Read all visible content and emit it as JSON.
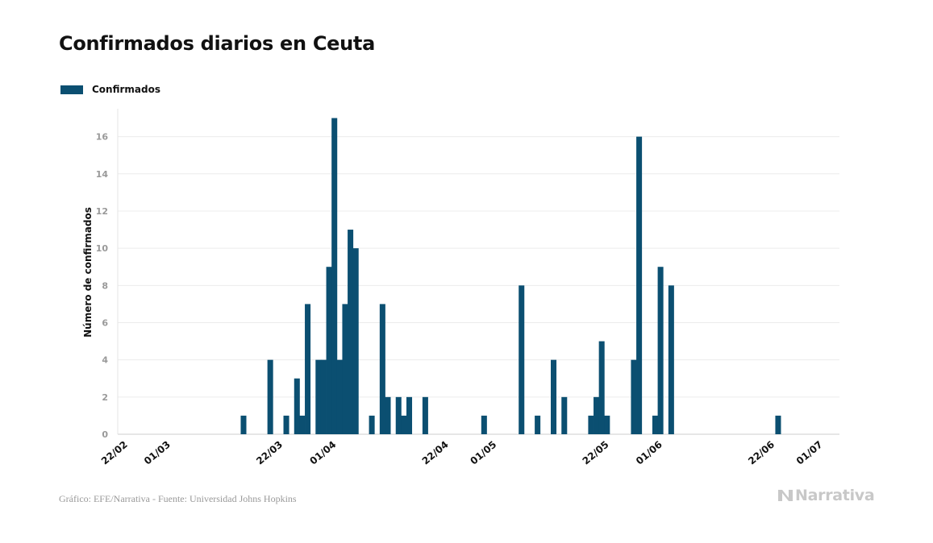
{
  "title": "Confirmados diarios en Ceuta",
  "legend": {
    "label": "Confirmados",
    "color": "#0b4f71"
  },
  "source": "Gráfico: EFE/Narrativa - Fuente: Universidad Johns Hopkins",
  "brand": {
    "name": "Narrativa",
    "logo_icon": "narrativa-logo-icon"
  },
  "chart_data": {
    "type": "bar",
    "title": "Confirmados diarios en Ceuta",
    "ylabel": "Número de confirmados",
    "xlabel": "",
    "ylim": [
      0,
      17.5
    ],
    "yticks": [
      0,
      2,
      4,
      6,
      8,
      10,
      12,
      14,
      16
    ],
    "grid": true,
    "legend_position": "top-left",
    "x_range": [
      "2020-02-21",
      "2020-07-05"
    ],
    "xtick_labels": [
      {
        "date": "2020-02-22",
        "label": "22/02"
      },
      {
        "date": "2020-03-01",
        "label": "01/03"
      },
      {
        "date": "2020-03-22",
        "label": "22/03"
      },
      {
        "date": "2020-04-01",
        "label": "01/04"
      },
      {
        "date": "2020-04-22",
        "label": "22/04"
      },
      {
        "date": "2020-05-01",
        "label": "01/05"
      },
      {
        "date": "2020-05-22",
        "label": "22/05"
      },
      {
        "date": "2020-06-01",
        "label": "01/06"
      },
      {
        "date": "2020-06-22",
        "label": "22/06"
      },
      {
        "date": "2020-07-01",
        "label": "01/07"
      }
    ],
    "series": [
      {
        "name": "Confirmados",
        "color": "#0b4f71",
        "points": [
          {
            "date": "2020-03-15",
            "value": 1
          },
          {
            "date": "2020-03-20",
            "value": 4
          },
          {
            "date": "2020-03-23",
            "value": 1
          },
          {
            "date": "2020-03-25",
            "value": 3
          },
          {
            "date": "2020-03-26",
            "value": 1
          },
          {
            "date": "2020-03-27",
            "value": 7
          },
          {
            "date": "2020-03-29",
            "value": 4
          },
          {
            "date": "2020-03-30",
            "value": 4
          },
          {
            "date": "2020-03-31",
            "value": 9
          },
          {
            "date": "2020-04-01",
            "value": 17
          },
          {
            "date": "2020-04-02",
            "value": 4
          },
          {
            "date": "2020-04-03",
            "value": 7
          },
          {
            "date": "2020-04-04",
            "value": 11
          },
          {
            "date": "2020-04-05",
            "value": 10
          },
          {
            "date": "2020-04-08",
            "value": 1
          },
          {
            "date": "2020-04-10",
            "value": 7
          },
          {
            "date": "2020-04-11",
            "value": 2
          },
          {
            "date": "2020-04-13",
            "value": 2
          },
          {
            "date": "2020-04-14",
            "value": 1
          },
          {
            "date": "2020-04-15",
            "value": 2
          },
          {
            "date": "2020-04-18",
            "value": 2
          },
          {
            "date": "2020-04-29",
            "value": 1
          },
          {
            "date": "2020-05-06",
            "value": 8
          },
          {
            "date": "2020-05-09",
            "value": 1
          },
          {
            "date": "2020-05-12",
            "value": 4
          },
          {
            "date": "2020-05-14",
            "value": 2
          },
          {
            "date": "2020-05-19",
            "value": 1
          },
          {
            "date": "2020-05-20",
            "value": 2
          },
          {
            "date": "2020-05-21",
            "value": 5
          },
          {
            "date": "2020-05-22",
            "value": 1
          },
          {
            "date": "2020-05-27",
            "value": 4
          },
          {
            "date": "2020-05-28",
            "value": 16
          },
          {
            "date": "2020-05-31",
            "value": 1
          },
          {
            "date": "2020-06-01",
            "value": 9
          },
          {
            "date": "2020-06-03",
            "value": 8
          },
          {
            "date": "2020-06-23",
            "value": 1
          }
        ]
      }
    ]
  }
}
